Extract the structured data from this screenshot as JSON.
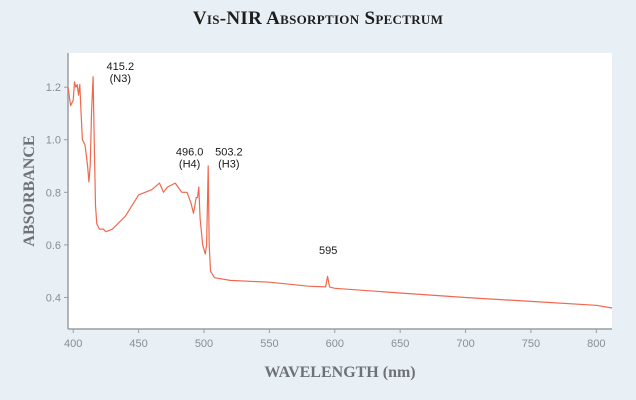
{
  "chart_data": {
    "type": "line",
    "title": "Vis-NIR Absorption Spectrum",
    "xlabel": "WAVELENGTH (nm)",
    "ylabel": "ABSORBANCE",
    "xlim": [
      396,
      812
    ],
    "ylim": [
      0.28,
      1.33
    ],
    "xticks": [
      400,
      450,
      500,
      550,
      600,
      650,
      700,
      750,
      800
    ],
    "yticks": [
      "0.4",
      "0.6",
      "0.8",
      "1.0",
      "1.2"
    ],
    "grid": false,
    "line_color": "#f0684e",
    "series": [
      {
        "x": [
          396,
          398,
          400,
          401,
          402,
          403,
          404,
          405,
          406,
          407,
          409,
          411,
          412,
          413,
          414,
          415.2,
          416,
          417,
          418,
          420,
          423,
          425,
          430,
          440,
          450,
          460,
          466,
          469,
          472,
          478,
          483,
          487,
          490,
          492,
          494,
          495,
          496,
          497,
          499,
          501,
          502,
          503.2,
          504,
          505,
          508,
          520,
          550,
          580,
          593,
          594.5,
          596,
          600,
          650,
          700,
          750,
          800,
          812
        ],
        "y": [
          1.2,
          1.13,
          1.15,
          1.22,
          1.2,
          1.21,
          1.17,
          1.21,
          1.1,
          1.0,
          0.98,
          0.9,
          0.84,
          0.9,
          1.1,
          1.24,
          1.0,
          0.75,
          0.68,
          0.66,
          0.66,
          0.65,
          0.66,
          0.71,
          0.79,
          0.81,
          0.835,
          0.8,
          0.82,
          0.835,
          0.8,
          0.8,
          0.76,
          0.72,
          0.78,
          0.78,
          0.82,
          0.7,
          0.6,
          0.565,
          0.6,
          0.9,
          0.6,
          0.5,
          0.475,
          0.465,
          0.458,
          0.443,
          0.44,
          0.48,
          0.44,
          0.435,
          0.417,
          0.4,
          0.385,
          0.37,
          0.36
        ]
      }
    ],
    "annotations": [
      {
        "lines": [
          "415.2",
          "(N3)"
        ],
        "x": 436,
        "y": 1.265
      },
      {
        "lines": [
          "496.0",
          "(H4)"
        ],
        "x": 489,
        "y": 0.94
      },
      {
        "lines": [
          "503.2",
          "(H3)"
        ],
        "x": 519,
        "y": 0.94
      },
      {
        "lines": [
          "595"
        ],
        "x": 595,
        "y": 0.565
      }
    ]
  }
}
